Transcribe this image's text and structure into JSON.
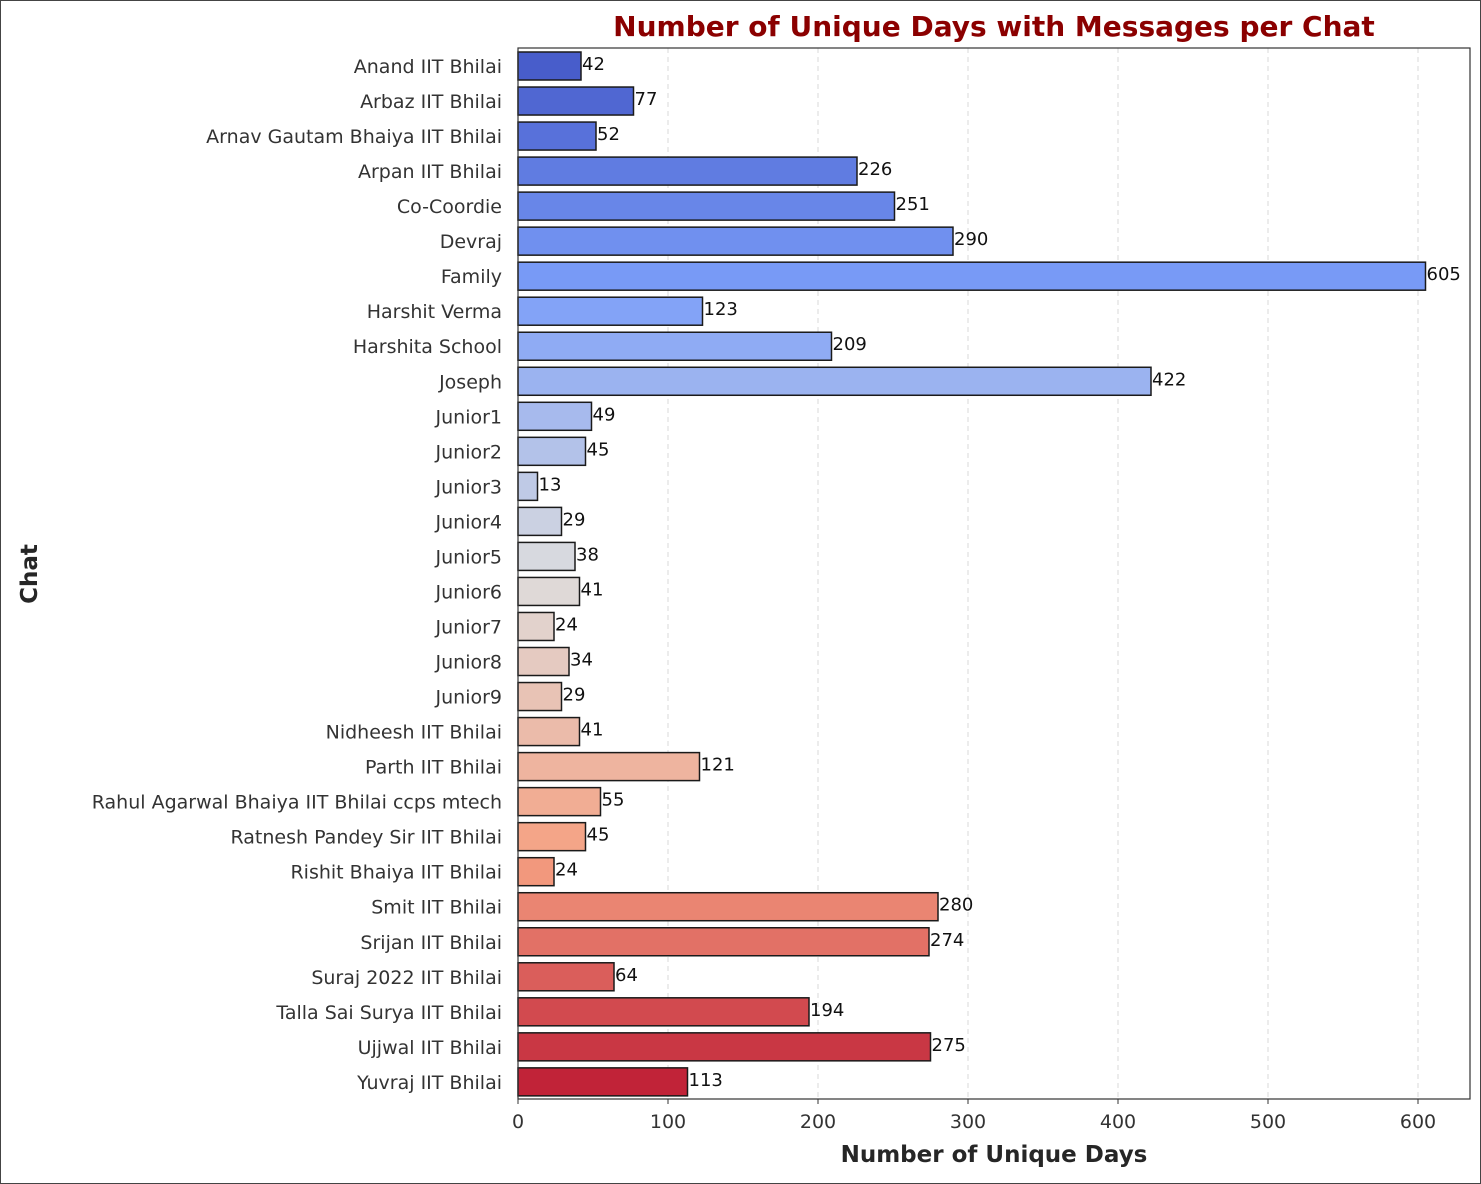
{
  "chart_data": {
    "type": "bar",
    "orientation": "horizontal",
    "title": "Number of Unique Days with Messages per Chat",
    "xlabel": "Number of Unique Days",
    "ylabel": "Chat",
    "xlim": [
      0,
      635
    ],
    "xticks": [
      0,
      100,
      200,
      300,
      400,
      500,
      600
    ],
    "grid": "vertical dashed",
    "data_labels": true,
    "colormap": "coolwarm",
    "categories": [
      "Anand IIT Bhilai",
      "Arbaz IIT Bhilai",
      "Arnav Gautam Bhaiya IIT Bhilai",
      "Arpan IIT Bhilai",
      "Co-Coordie",
      "Devraj",
      "Family",
      "Harshit Verma",
      "Harshita School",
      "Joseph",
      "Junior1",
      "Junior2",
      "Junior3",
      "Junior4",
      "Junior5",
      "Junior6",
      "Junior7",
      "Junior8",
      "Junior9",
      "Nidheesh IIT Bhilai",
      "Parth IIT Bhilai",
      "Rahul Agarwal Bhaiya IIT Bhilai ccps mtech",
      "Ratnesh Pandey Sir IIT Bhilai",
      "Rishit Bhaiya IIT Bhilai",
      "Smit IIT Bhilai",
      "Srijan IIT Bhilai",
      "Suraj 2022 IIT Bhilai",
      "Talla Sai Surya IIT Bhilai",
      "Ujjwal IIT Bhilai",
      "Yuvraj IIT Bhilai"
    ],
    "values": [
      42,
      77,
      52,
      226,
      251,
      290,
      605,
      123,
      209,
      422,
      49,
      45,
      13,
      29,
      38,
      41,
      24,
      34,
      29,
      41,
      121,
      55,
      45,
      24,
      280,
      274,
      64,
      194,
      275,
      113
    ]
  },
  "colors": {
    "title": "#8b0000",
    "bar_edge": "#1a1a1a",
    "grid": "#d9d9d9",
    "spine": "#333333"
  }
}
